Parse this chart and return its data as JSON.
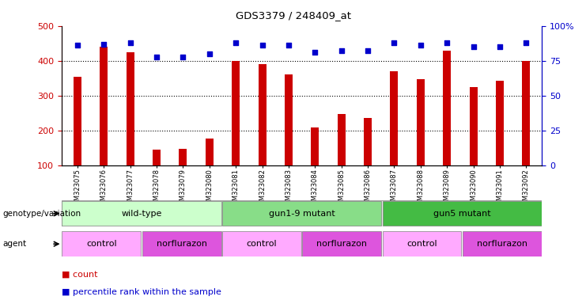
{
  "title": "GDS3379 / 248409_at",
  "samples": [
    "GSM323075",
    "GSM323076",
    "GSM323077",
    "GSM323078",
    "GSM323079",
    "GSM323080",
    "GSM323081",
    "GSM323082",
    "GSM323083",
    "GSM323084",
    "GSM323085",
    "GSM323086",
    "GSM323087",
    "GSM323088",
    "GSM323089",
    "GSM323090",
    "GSM323091",
    "GSM323092"
  ],
  "counts": [
    355,
    440,
    425,
    145,
    148,
    178,
    400,
    390,
    360,
    210,
    247,
    237,
    370,
    348,
    428,
    325,
    342,
    400
  ],
  "percentile_ranks": [
    86,
    87,
    88,
    78,
    78,
    80,
    88,
    86,
    86,
    81,
    82,
    82,
    88,
    86,
    88,
    85,
    85,
    88
  ],
  "bar_color": "#cc0000",
  "dot_color": "#0000cc",
  "bar_bottom": 100,
  "ylim_left": [
    100,
    500
  ],
  "ylim_right": [
    0,
    100
  ],
  "yticks_left": [
    100,
    200,
    300,
    400,
    500
  ],
  "ytick_labels_left": [
    "100",
    "200",
    "300",
    "400",
    "500"
  ],
  "yticks_right": [
    0,
    25,
    50,
    75,
    100
  ],
  "ytick_labels_right": [
    "0",
    "25",
    "50",
    "75",
    "100%"
  ],
  "grid_values": [
    200,
    300,
    400
  ],
  "genotype_groups": [
    {
      "label": "wild-type",
      "start": 0,
      "end": 6,
      "color": "#ccffcc"
    },
    {
      "label": "gun1-9 mutant",
      "start": 6,
      "end": 12,
      "color": "#88dd88"
    },
    {
      "label": "gun5 mutant",
      "start": 12,
      "end": 18,
      "color": "#44bb44"
    }
  ],
  "agent_groups": [
    {
      "label": "control",
      "start": 0,
      "end": 3,
      "color": "#ffaaff"
    },
    {
      "label": "norflurazon",
      "start": 3,
      "end": 6,
      "color": "#dd55dd"
    },
    {
      "label": "control",
      "start": 6,
      "end": 9,
      "color": "#ffaaff"
    },
    {
      "label": "norflurazon",
      "start": 9,
      "end": 12,
      "color": "#dd55dd"
    },
    {
      "label": "control",
      "start": 12,
      "end": 15,
      "color": "#ffaaff"
    },
    {
      "label": "norflurazon",
      "start": 15,
      "end": 18,
      "color": "#dd55dd"
    }
  ],
  "bar_color_legend": "#cc0000",
  "dot_color_legend": "#0000cc",
  "tick_color_left": "#cc0000",
  "tick_color_right": "#0000cc"
}
